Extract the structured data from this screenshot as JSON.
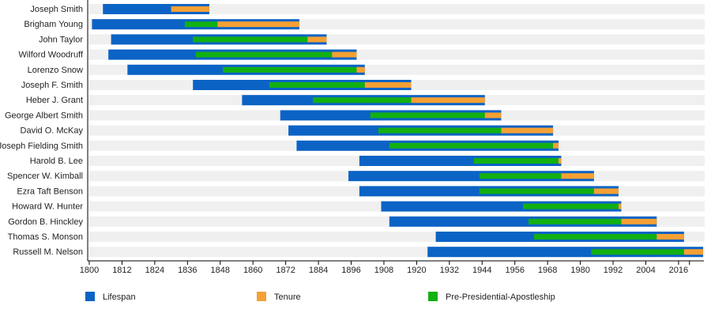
{
  "chart_data": {
    "type": "timeline",
    "title": "",
    "xlabel": "",
    "ylabel": "",
    "xlim": [
      1800,
      2025
    ],
    "x_ticks": [
      1800,
      1812,
      1824,
      1836,
      1848,
      1860,
      1872,
      1884,
      1896,
      1908,
      1920,
      1932,
      1944,
      1956,
      1968,
      1980,
      1992,
      2004,
      2016
    ],
    "legend_position": "bottom",
    "colors": {
      "lifespan": "#0b63c5",
      "tenure": "#f5a034",
      "apostleship": "#12b012",
      "band": "#f0f0f0"
    },
    "legend": [
      {
        "key": "lifespan",
        "label": "Lifespan"
      },
      {
        "key": "tenure",
        "label": "Tenure"
      },
      {
        "key": "apostleship",
        "label": "Pre-Presidential-Apostleship"
      }
    ],
    "rows": [
      {
        "name": "Joseph Smith",
        "born": 1805,
        "died": 1844,
        "apostle": null,
        "tenure_start": 1830,
        "tenure_end": 1844
      },
      {
        "name": "Brigham Young",
        "born": 1801,
        "died": 1877,
        "apostle": 1835,
        "tenure_start": 1847,
        "tenure_end": 1877
      },
      {
        "name": "John Taylor",
        "born": 1808,
        "died": 1887,
        "apostle": 1838,
        "tenure_start": 1880,
        "tenure_end": 1887
      },
      {
        "name": "Wilford Woodruff",
        "born": 1807,
        "died": 1898,
        "apostle": 1839,
        "tenure_start": 1889,
        "tenure_end": 1898
      },
      {
        "name": "Lorenzo Snow",
        "born": 1814,
        "died": 1901,
        "apostle": 1849,
        "tenure_start": 1898,
        "tenure_end": 1901
      },
      {
        "name": "Joseph F. Smith",
        "born": 1838,
        "died": 1918,
        "apostle": 1866,
        "tenure_start": 1901,
        "tenure_end": 1918
      },
      {
        "name": "Heber J. Grant",
        "born": 1856,
        "died": 1945,
        "apostle": 1882,
        "tenure_start": 1918,
        "tenure_end": 1945
      },
      {
        "name": "George Albert Smith",
        "born": 1870,
        "died": 1951,
        "apostle": 1903,
        "tenure_start": 1945,
        "tenure_end": 1951
      },
      {
        "name": "David O. McKay",
        "born": 1873,
        "died": 1970,
        "apostle": 1906,
        "tenure_start": 1951,
        "tenure_end": 1970
      },
      {
        "name": "Joseph Fielding Smith",
        "born": 1876,
        "died": 1972,
        "apostle": 1910,
        "tenure_start": 1970,
        "tenure_end": 1972
      },
      {
        "name": "Harold B. Lee",
        "born": 1899,
        "died": 1973,
        "apostle": 1941,
        "tenure_start": 1972,
        "tenure_end": 1973
      },
      {
        "name": "Spencer W. Kimball",
        "born": 1895,
        "died": 1985,
        "apostle": 1943,
        "tenure_start": 1973,
        "tenure_end": 1985
      },
      {
        "name": "Ezra Taft Benson",
        "born": 1899,
        "died": 1994,
        "apostle": 1943,
        "tenure_start": 1985,
        "tenure_end": 1994
      },
      {
        "name": "Howard W. Hunter",
        "born": 1907,
        "died": 1995,
        "apostle": 1959,
        "tenure_start": 1994,
        "tenure_end": 1995
      },
      {
        "name": "Gordon B. Hinckley",
        "born": 1910,
        "died": 2008,
        "apostle": 1961,
        "tenure_start": 1995,
        "tenure_end": 2008
      },
      {
        "name": "Thomas S. Monson",
        "born": 1927,
        "died": 2018,
        "apostle": 1963,
        "tenure_start": 2008,
        "tenure_end": 2018
      },
      {
        "name": "Russell M. Nelson",
        "born": 1924,
        "died": 2025,
        "apostle": 1984,
        "tenure_start": 2018,
        "tenure_end": 2025
      }
    ]
  }
}
